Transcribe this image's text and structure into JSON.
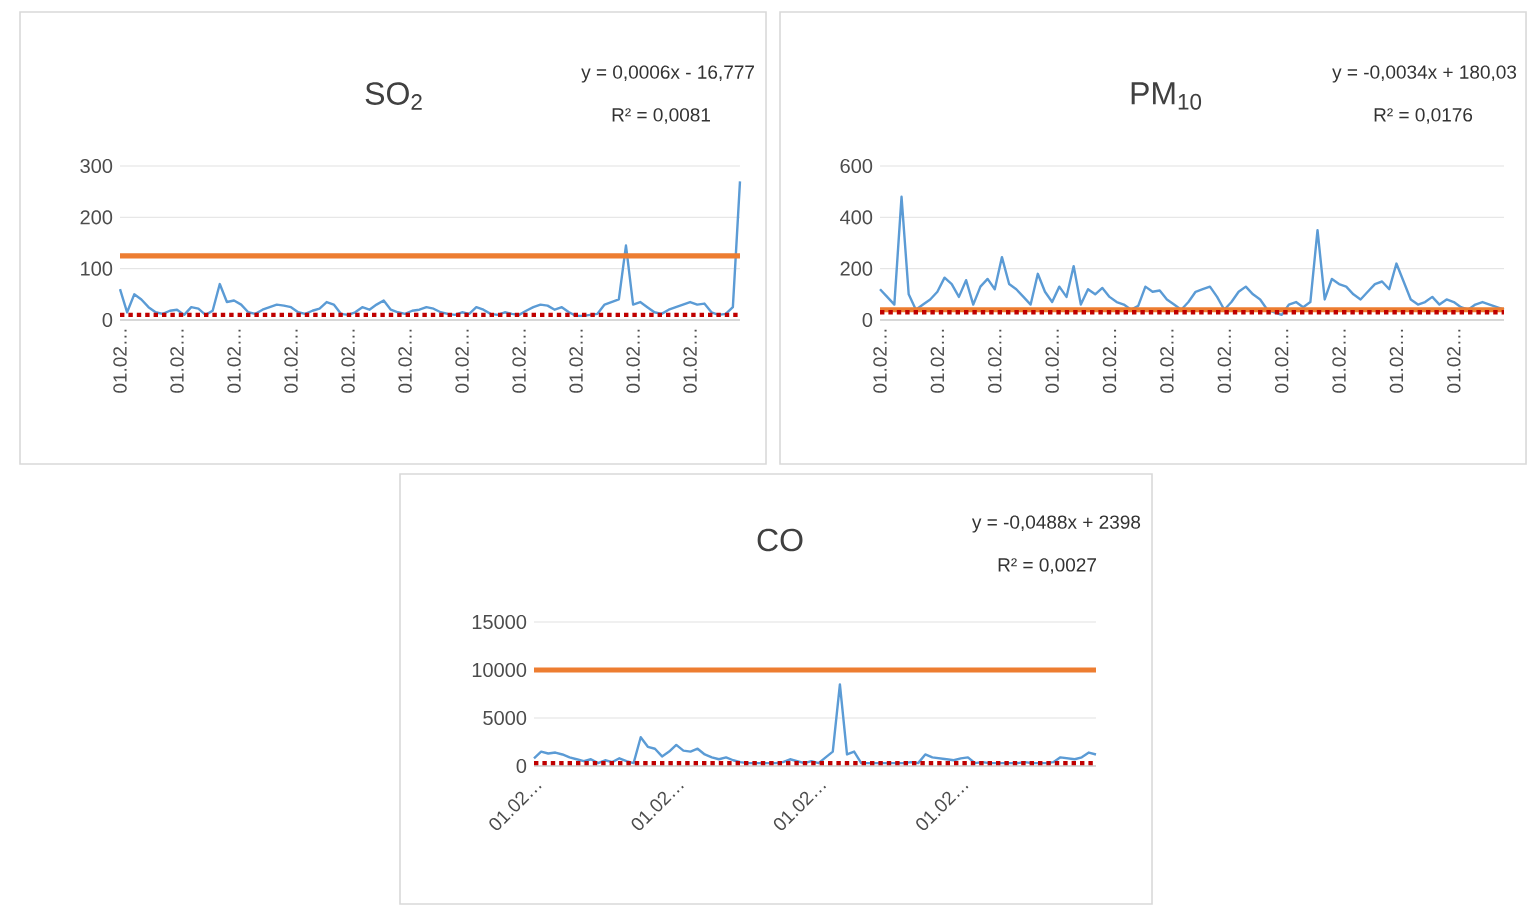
{
  "chart_data": [
    {
      "type": "line",
      "title": "SO$_{2}$",
      "annotations": [
        "y = 0,0006x - 16,777",
        "R² = 0,0081"
      ],
      "categories": [
        "01.02…",
        null,
        null,
        null,
        null,
        null,
        null,
        null,
        "01.02…",
        null,
        null,
        null,
        null,
        null,
        null,
        null,
        "01.02…",
        null,
        null,
        null,
        null,
        null,
        null,
        null,
        "01.02…",
        null,
        null,
        null,
        null,
        null,
        null,
        null,
        "01.02…",
        null,
        null,
        null,
        null,
        null,
        null,
        null,
        "01.02…",
        null,
        null,
        null,
        null,
        null,
        null,
        null,
        "01.02…",
        null,
        null,
        null,
        null,
        null,
        null,
        null,
        "01.02…",
        null,
        null,
        null,
        null,
        null,
        null,
        null,
        "01.02…",
        null,
        null,
        null,
        null,
        null,
        null,
        null,
        "01.02…",
        null,
        null,
        null,
        null,
        null,
        null,
        null,
        "01.02…",
        null,
        null,
        null,
        null,
        null,
        null,
        null
      ],
      "ylim": [
        0,
        300
      ],
      "yticks": [
        0,
        100,
        200,
        300
      ],
      "grid": "y",
      "marker": "none",
      "ref_lines": [
        {
          "axis": "y",
          "value": 125,
          "color": "#ed7d31"
        }
      ],
      "series": [
        {
          "color": "#5b9bd5",
          "values": [
            60,
            15,
            50,
            40,
            25,
            15,
            12,
            18,
            20,
            10,
            25,
            22,
            10,
            18,
            70,
            35,
            38,
            30,
            15,
            12,
            20,
            25,
            30,
            28,
            25,
            15,
            12,
            18,
            22,
            35,
            30,
            12,
            10,
            15,
            25,
            20,
            30,
            38,
            20,
            15,
            12,
            18,
            20,
            25,
            22,
            15,
            12,
            10,
            15,
            12,
            25,
            20,
            12,
            10,
            15,
            12,
            10,
            18,
            25,
            30,
            28,
            20,
            25,
            15,
            8,
            8,
            10,
            12,
            30,
            35,
            40,
            145,
            30,
            35,
            25,
            15,
            12,
            20,
            25,
            30,
            35,
            30,
            32,
            15,
            10,
            12,
            25,
            270
          ]
        },
        {
          "type": "line",
          "values": [
            10,
            10,
            10,
            10,
            10,
            10,
            10,
            10,
            10,
            10,
            10,
            10,
            10,
            10,
            10,
            10,
            10,
            10,
            10,
            10,
            10,
            10,
            10,
            10,
            10,
            10,
            10,
            10,
            10,
            10,
            10,
            10,
            10,
            10,
            10,
            10,
            10,
            10,
            10,
            10,
            10,
            10,
            10,
            10,
            10,
            10,
            10,
            10,
            10,
            10,
            10,
            10,
            10,
            10,
            10,
            10,
            10,
            10,
            10,
            10,
            10,
            10,
            10,
            10,
            10,
            10,
            10,
            10,
            10,
            10,
            10,
            10,
            10,
            10,
            10,
            10,
            10,
            10,
            10,
            10,
            10,
            10,
            10,
            10,
            10,
            10,
            10,
            10
          ],
          "color": "#c00000",
          "line_style": "dotted"
        }
      ]
    },
    {
      "type": "line",
      "title": "PM$_{10}$",
      "annotations": [
        "y = -0,0034x + 180,03",
        "R² = 0,0176"
      ],
      "categories": [
        "01.02…",
        null,
        null,
        null,
        null,
        null,
        null,
        null,
        "01.02…",
        null,
        null,
        null,
        null,
        null,
        null,
        null,
        "01.02…",
        null,
        null,
        null,
        null,
        null,
        null,
        null,
        "01.02…",
        null,
        null,
        null,
        null,
        null,
        null,
        null,
        "01.02…",
        null,
        null,
        null,
        null,
        null,
        null,
        null,
        "01.02…",
        null,
        null,
        null,
        null,
        null,
        null,
        null,
        "01.02…",
        null,
        null,
        null,
        null,
        null,
        null,
        null,
        "01.02…",
        null,
        null,
        null,
        null,
        null,
        null,
        null,
        "01.02…",
        null,
        null,
        null,
        null,
        null,
        null,
        null,
        "01.02…",
        null,
        null,
        null,
        null,
        null,
        null,
        null,
        "01.02…",
        null,
        null,
        null,
        null,
        null,
        null,
        null
      ],
      "ylim": [
        0,
        600
      ],
      "yticks": [
        0,
        200,
        400,
        600
      ],
      "grid": "y",
      "marker": "none",
      "ref_lines": [
        {
          "axis": "y",
          "value": 40,
          "color": "#ed7d31"
        }
      ],
      "series": [
        {
          "color": "#5b9bd5",
          "values": [
            120,
            90,
            60,
            480,
            100,
            40,
            60,
            80,
            110,
            165,
            140,
            90,
            155,
            60,
            130,
            160,
            120,
            245,
            140,
            120,
            90,
            60,
            180,
            110,
            70,
            130,
            90,
            210,
            60,
            120,
            100,
            125,
            90,
            70,
            60,
            40,
            55,
            130,
            110,
            115,
            80,
            60,
            40,
            70,
            110,
            120,
            130,
            90,
            40,
            70,
            110,
            130,
            100,
            80,
            40,
            30,
            20,
            60,
            70,
            50,
            70,
            350,
            80,
            160,
            140,
            130,
            100,
            80,
            110,
            140,
            150,
            120,
            220,
            150,
            80,
            60,
            70,
            90,
            60,
            80,
            70,
            50,
            40,
            60,
            70,
            60,
            50,
            40
          ]
        },
        {
          "type": "line",
          "values": [
            30,
            30,
            30,
            30,
            30,
            30,
            30,
            30,
            30,
            30,
            30,
            30,
            30,
            30,
            30,
            30,
            30,
            30,
            30,
            30,
            30,
            30,
            30,
            30,
            30,
            30,
            30,
            30,
            30,
            30,
            30,
            30,
            30,
            30,
            30,
            30,
            30,
            30,
            30,
            30,
            30,
            30,
            30,
            30,
            30,
            30,
            30,
            30,
            30,
            30,
            30,
            30,
            30,
            30,
            30,
            30,
            30,
            30,
            30,
            30,
            30,
            30,
            30,
            30,
            30,
            30,
            30,
            30,
            30,
            30,
            30,
            30,
            30,
            30,
            30,
            30,
            30,
            30,
            30,
            30,
            30,
            30,
            30,
            30,
            30,
            30,
            30,
            30
          ],
          "color": "#c00000",
          "line_style": "dotted"
        }
      ]
    },
    {
      "type": "line",
      "title": "CO",
      "annotations": [
        "y = -0,0488x + 2398",
        "R² = 0,0027"
      ],
      "categories": [
        "01.02…",
        null,
        null,
        null,
        null,
        null,
        null,
        null,
        null,
        null,
        null,
        null,
        null,
        null,
        null,
        null,
        null,
        null,
        null,
        null,
        "01.02…",
        null,
        null,
        null,
        null,
        null,
        null,
        null,
        null,
        null,
        null,
        null,
        null,
        null,
        null,
        null,
        null,
        null,
        null,
        null,
        "01.02…",
        null,
        null,
        null,
        null,
        null,
        null,
        null,
        null,
        null,
        null,
        null,
        null,
        null,
        null,
        null,
        null,
        null,
        null,
        null,
        "01.02…",
        null,
        null,
        null,
        null,
        null,
        null,
        null,
        null,
        null,
        null,
        null,
        null,
        null,
        null,
        null,
        null,
        null,
        null,
        null
      ],
      "ylim": [
        0,
        15000
      ],
      "yticks": [
        0,
        5000,
        10000,
        15000
      ],
      "grid": "y",
      "marker": "none",
      "ref_lines": [
        {
          "axis": "y",
          "value": 10000,
          "color": "#ed7d31"
        }
      ],
      "series": [
        {
          "color": "#5b9bd5",
          "values": [
            800,
            1500,
            1300,
            1400,
            1200,
            900,
            700,
            500,
            700,
            300,
            600,
            400,
            800,
            500,
            300,
            3000,
            2000,
            1800,
            1000,
            1500,
            2200,
            1600,
            1500,
            1800,
            1200,
            900,
            700,
            900,
            600,
            400,
            300,
            300,
            300,
            300,
            300,
            400,
            700,
            500,
            300,
            500,
            300,
            900,
            1500,
            8500,
            1200,
            1500,
            300,
            300,
            300,
            300,
            300,
            300,
            300,
            400,
            300,
            1200,
            900,
            800,
            700,
            600,
            800,
            900,
            300,
            400,
            300,
            300,
            300,
            300,
            300,
            400,
            300,
            300,
            300,
            400,
            900,
            800,
            700,
            900,
            1400,
            1200
          ]
        },
        {
          "type": "line",
          "values": [
            300,
            300,
            300,
            300,
            300,
            300,
            300,
            300,
            300,
            300,
            300,
            300,
            300,
            300,
            300,
            300,
            300,
            300,
            300,
            300,
            300,
            300,
            300,
            300,
            300,
            300,
            300,
            300,
            300,
            300,
            300,
            300,
            300,
            300,
            300,
            300,
            300,
            300,
            300,
            300,
            300,
            300,
            300,
            300,
            300,
            300,
            300,
            300,
            300,
            300,
            300,
            300,
            300,
            300,
            300,
            300,
            300,
            300,
            300,
            300,
            300,
            300,
            300,
            300,
            300,
            300,
            300,
            300,
            300,
            300,
            300,
            300,
            300,
            300,
            300,
            300,
            300,
            300,
            300,
            300
          ],
          "color": "#c00000",
          "line_style": "dotted"
        }
      ]
    }
  ]
}
